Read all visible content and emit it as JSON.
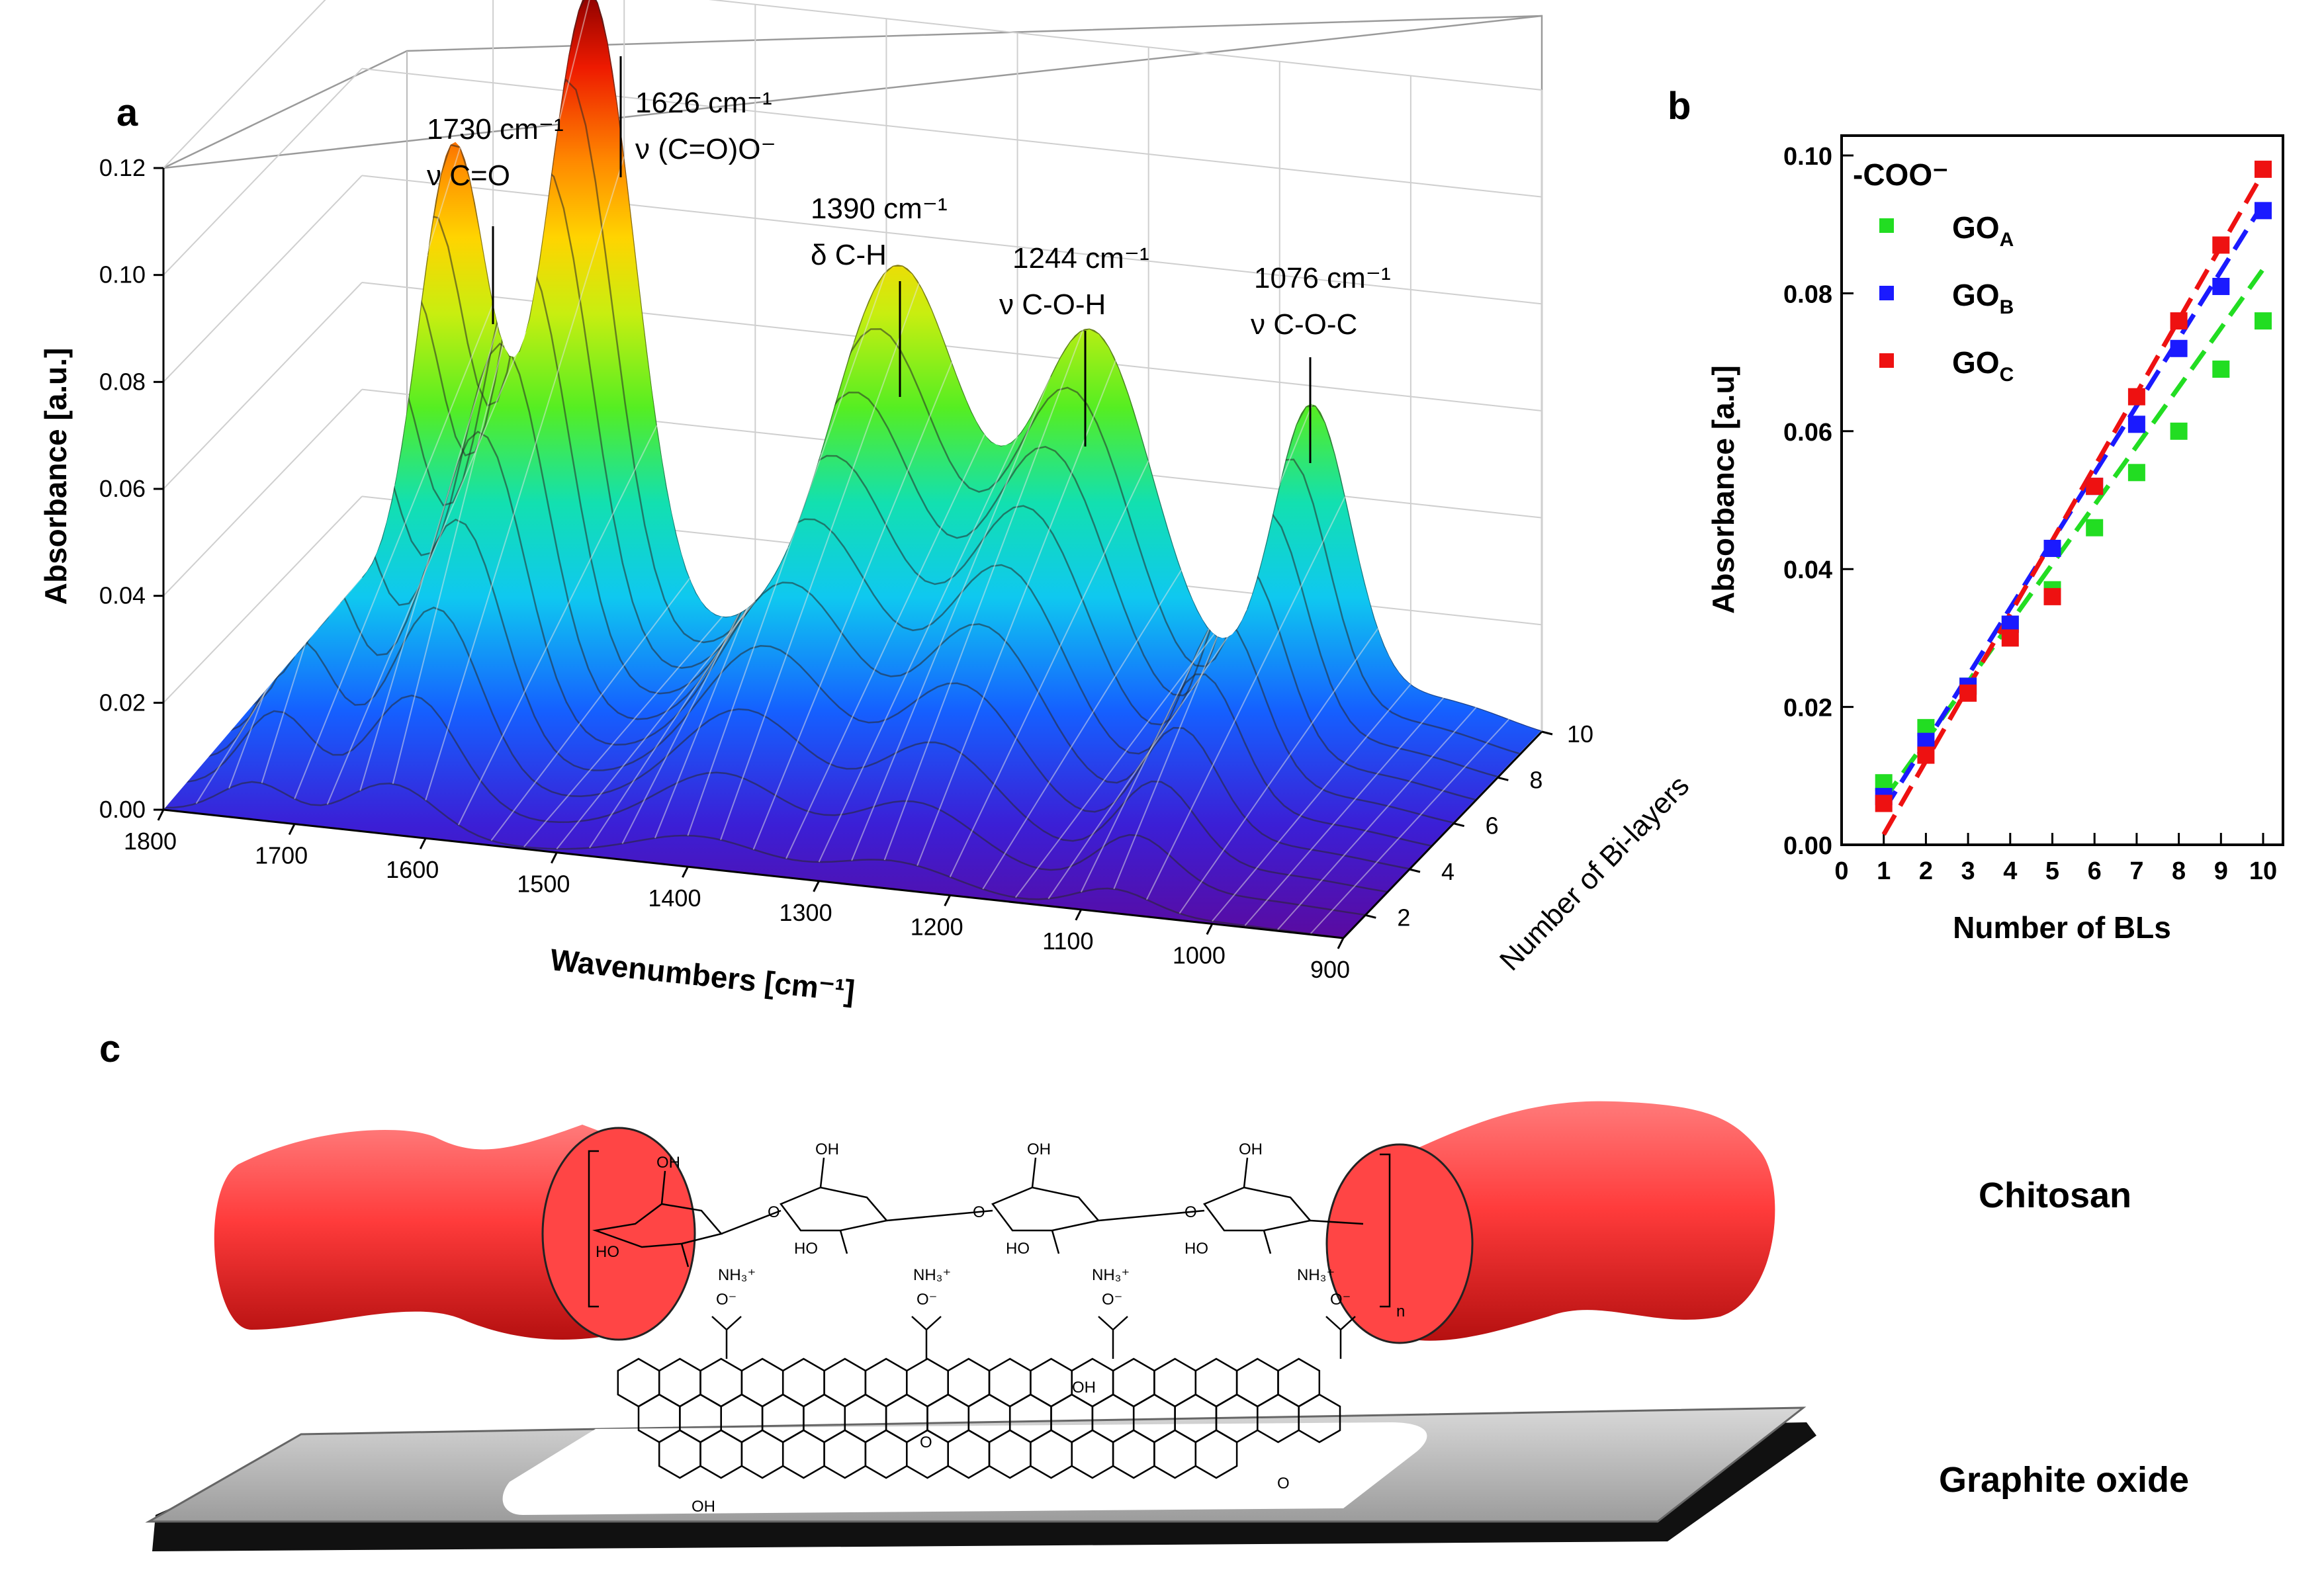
{
  "panels": {
    "a": "a",
    "b": "b",
    "c": "c"
  },
  "panel_a": {
    "ylabel": "Absorbance [a.u.]",
    "xlabel": "Wavenumbers [cm⁻¹]",
    "zlabel": "Number of Bi-layers",
    "y_ticks": [
      "0.00",
      "0.02",
      "0.04",
      "0.06",
      "0.08",
      "0.10",
      "0.12"
    ],
    "x_ticks": [
      "1800",
      "1700",
      "1600",
      "1500",
      "1400",
      "1300",
      "1200",
      "1100",
      "1000",
      "900"
    ],
    "z_ticks": [
      "2",
      "4",
      "6",
      "8",
      "10"
    ],
    "annotations": [
      {
        "wavenumber": "1730 cm⁻¹",
        "mode": "ν C=O"
      },
      {
        "wavenumber": "1626 cm⁻¹",
        "mode": "ν (C=O)O⁻"
      },
      {
        "wavenumber": "1390 cm⁻¹",
        "mode": "δ C-H"
      },
      {
        "wavenumber": "1244 cm⁻¹",
        "mode": "ν C-O-H"
      },
      {
        "wavenumber": "1076 cm⁻¹",
        "mode": "ν C-O-C"
      }
    ]
  },
  "panel_b": {
    "legend_title": "-COO⁻",
    "legend": [
      {
        "base": "GO",
        "sub": "A",
        "color": "#22dd22"
      },
      {
        "base": "GO",
        "sub": "B",
        "color": "#1a1aff"
      },
      {
        "base": "GO",
        "sub": "C",
        "color": "#ee1111"
      }
    ]
  },
  "panel_c": {
    "chitosan_label": "Chitosan",
    "graphite_label": "Graphite oxide",
    "mol_labels": {
      "oh": "OH",
      "ho": "HO",
      "nh3": "NH₃⁺",
      "o": "O",
      "coo": "O⁻",
      "n": "n"
    }
  },
  "chart_data": [
    {
      "type": "surface",
      "title": "",
      "xlabel": "Wavenumbers [cm⁻¹]",
      "ylabel": "Absorbance [a.u.]",
      "zlabel": "Number of Bi-layers",
      "xlim": [
        1800,
        900
      ],
      "ylim": [
        0,
        0.12
      ],
      "zlim": [
        1,
        10
      ],
      "peaks": [
        {
          "wavenumber": 1730,
          "max_absorbance": 0.085,
          "width": 38
        },
        {
          "wavenumber": 1626,
          "max_absorbance": 0.117,
          "width": 48
        },
        {
          "wavenumber": 1390,
          "max_absorbance": 0.072,
          "width": 60
        },
        {
          "wavenumber": 1244,
          "max_absorbance": 0.062,
          "width": 55
        },
        {
          "wavenumber": 1076,
          "max_absorbance": 0.056,
          "width": 32
        }
      ]
    },
    {
      "type": "scatter",
      "title": "",
      "xlabel": "Number of BLs",
      "ylabel": "Absorbance [a.u]",
      "xlim": [
        0,
        10
      ],
      "ylim": [
        0,
        0.1
      ],
      "x_ticks": [
        0,
        1,
        2,
        3,
        4,
        5,
        6,
        7,
        8,
        9,
        10
      ],
      "y_ticks": [
        0.0,
        0.02,
        0.04,
        0.06,
        0.08,
        0.1
      ],
      "x": [
        1,
        2,
        3,
        4,
        5,
        6,
        7,
        8,
        9,
        10
      ],
      "series": [
        {
          "name": "GOA",
          "color": "#22dd22",
          "values": [
            0.009,
            0.017,
            0.023,
            0.032,
            0.037,
            0.046,
            0.054,
            0.06,
            0.069,
            0.076
          ],
          "fit": [
            0.0065,
            0.0835
          ]
        },
        {
          "name": "GOB",
          "color": "#1a1aff",
          "values": [
            0.007,
            0.015,
            0.023,
            0.032,
            0.043,
            0.052,
            0.061,
            0.072,
            0.081,
            0.092
          ],
          "fit": [
            0.005,
            0.093
          ]
        },
        {
          "name": "GOC",
          "color": "#ee1111",
          "values": [
            0.006,
            0.013,
            0.022,
            0.03,
            0.036,
            0.052,
            0.065,
            0.076,
            0.087,
            0.098
          ],
          "fit": [
            0.0015,
            0.0975
          ]
        }
      ]
    }
  ]
}
